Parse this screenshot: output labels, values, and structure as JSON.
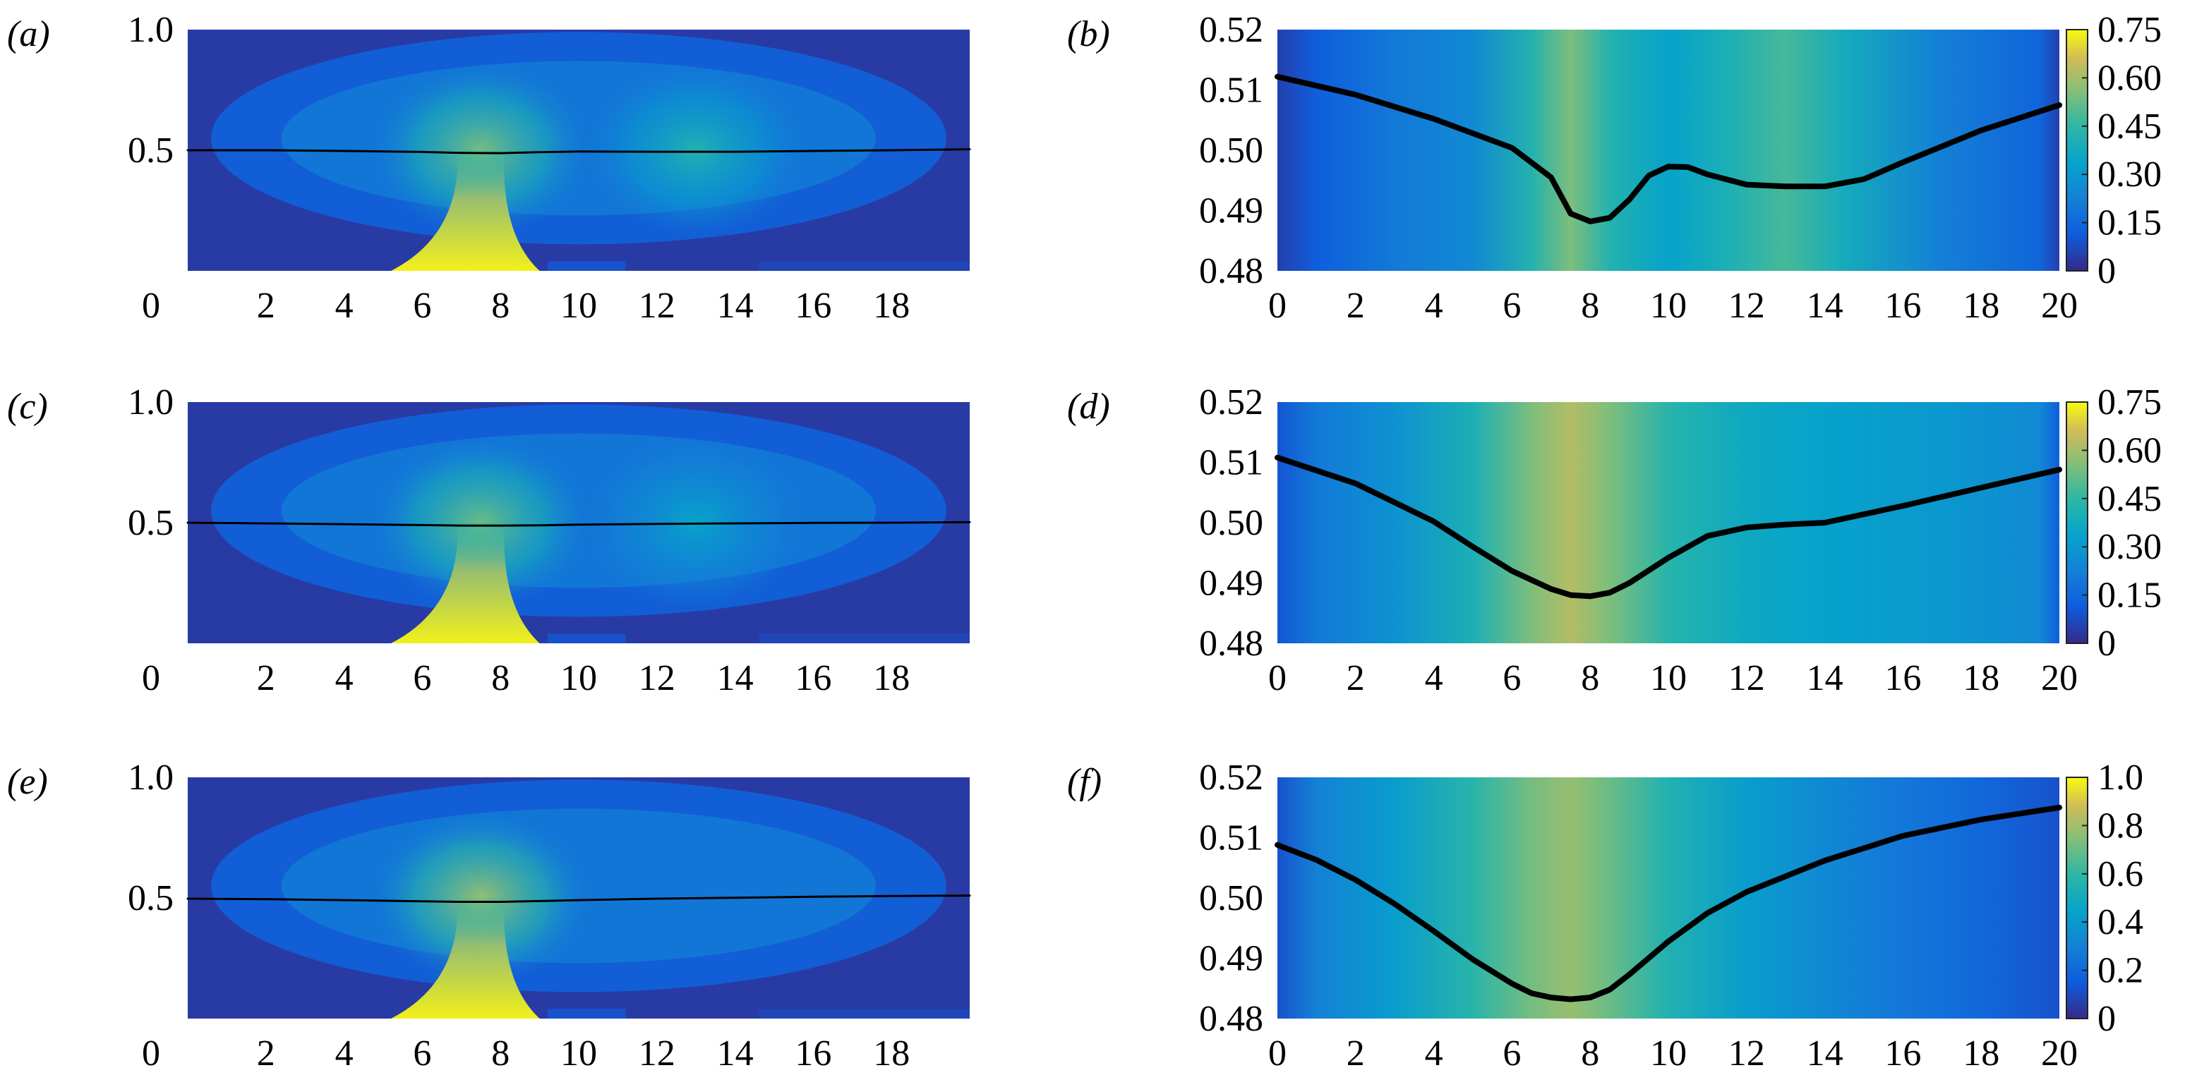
{
  "chart_data": [
    {
      "panel_label": "(a)",
      "type": "heatmap",
      "xlim": [
        0,
        20
      ],
      "ylim": [
        0,
        1.0
      ],
      "xticks": [
        "0",
        "2",
        "4",
        "6",
        "8",
        "10",
        "12",
        "14",
        "16",
        "18"
      ],
      "yticks": [
        "0.5",
        "1.0"
      ],
      "hot_spots": [
        {
          "x": 7.5,
          "y": 0.5,
          "intensity": 0.72
        },
        {
          "x": 13,
          "y": 0.5,
          "intensity": 0.55
        }
      ],
      "series": [
        {
          "x": [
            0,
            2,
            4,
            6,
            7,
            8,
            9,
            10,
            12,
            14,
            16,
            18,
            20
          ],
          "y": [
            0.5,
            0.5,
            0.497,
            0.493,
            0.489,
            0.488,
            0.492,
            0.495,
            0.494,
            0.494,
            0.497,
            0.5,
            0.504
          ]
        }
      ]
    },
    {
      "panel_label": "(b)",
      "type": "heatmap",
      "xlim": [
        0,
        20
      ],
      "ylim": [
        0.48,
        0.52
      ],
      "xticks": [
        "0",
        "2",
        "4",
        "6",
        "8",
        "10",
        "12",
        "14",
        "16",
        "18",
        "20"
      ],
      "yticks": [
        "0.48",
        "0.49",
        "0.50",
        "0.51",
        "0.52"
      ],
      "colorbar": {
        "min": 0,
        "max": 0.75,
        "ticks": [
          "0",
          "0.15",
          "0.30",
          "0.45",
          "0.60",
          "0.75"
        ]
      },
      "column_values": [
        {
          "x": 0,
          "v": 0.05
        },
        {
          "x": 1,
          "v": 0.12
        },
        {
          "x": 3,
          "v": 0.2
        },
        {
          "x": 5,
          "v": 0.25
        },
        {
          "x": 6.5,
          "v": 0.42
        },
        {
          "x": 7.5,
          "v": 0.55
        },
        {
          "x": 8.5,
          "v": 0.42
        },
        {
          "x": 10,
          "v": 0.33
        },
        {
          "x": 11.5,
          "v": 0.4
        },
        {
          "x": 13,
          "v": 0.48
        },
        {
          "x": 14.5,
          "v": 0.38
        },
        {
          "x": 17,
          "v": 0.22
        },
        {
          "x": 19.5,
          "v": 0.14
        },
        {
          "x": 20,
          "v": 0.05
        }
      ],
      "series": [
        {
          "x": [
            0,
            2,
            4,
            6,
            7,
            7.5,
            8,
            8.5,
            9,
            9.5,
            10,
            10.5,
            11,
            12,
            13,
            14,
            15,
            16,
            18,
            20
          ],
          "y": [
            0.5122,
            0.5092,
            0.5052,
            0.5004,
            0.4955,
            0.4895,
            0.4882,
            0.4888,
            0.4918,
            0.4958,
            0.4973,
            0.4972,
            0.496,
            0.4943,
            0.494,
            0.494,
            0.4952,
            0.498,
            0.5033,
            0.5075
          ]
        }
      ]
    },
    {
      "panel_label": "(c)",
      "type": "heatmap",
      "xlim": [
        0,
        20
      ],
      "ylim": [
        0,
        1.0
      ],
      "xticks": [
        "0",
        "2",
        "4",
        "6",
        "8",
        "10",
        "12",
        "14",
        "16",
        "18"
      ],
      "yticks": [
        "0.5",
        "1.0"
      ],
      "hot_spots": [
        {
          "x": 7.5,
          "y": 0.5,
          "intensity": 0.7
        },
        {
          "x": 13,
          "y": 0.5,
          "intensity": 0.45
        }
      ],
      "series": [
        {
          "x": [
            0,
            2,
            4,
            6,
            7,
            8,
            9,
            10,
            12,
            14,
            16,
            18,
            20
          ],
          "y": [
            0.5,
            0.497,
            0.494,
            0.49,
            0.488,
            0.488,
            0.489,
            0.492,
            0.495,
            0.497,
            0.499,
            0.5,
            0.502
          ]
        }
      ]
    },
    {
      "panel_label": "(d)",
      "type": "heatmap",
      "xlim": [
        0,
        20
      ],
      "ylim": [
        0.48,
        0.52
      ],
      "xticks": [
        "0",
        "2",
        "4",
        "6",
        "8",
        "10",
        "12",
        "14",
        "16",
        "18",
        "20"
      ],
      "yticks": [
        "0.48",
        "0.49",
        "0.50",
        "0.51",
        "0.52"
      ],
      "colorbar": {
        "min": 0,
        "max": 0.75,
        "ticks": [
          "0",
          "0.15",
          "0.30",
          "0.45",
          "0.60",
          "0.75"
        ]
      },
      "column_values": [
        {
          "x": 0,
          "v": 0.1
        },
        {
          "x": 1,
          "v": 0.2
        },
        {
          "x": 3,
          "v": 0.28
        },
        {
          "x": 5,
          "v": 0.4
        },
        {
          "x": 6.5,
          "v": 0.55
        },
        {
          "x": 7.5,
          "v": 0.62
        },
        {
          "x": 8.5,
          "v": 0.55
        },
        {
          "x": 10,
          "v": 0.43
        },
        {
          "x": 12,
          "v": 0.36
        },
        {
          "x": 14,
          "v": 0.33
        },
        {
          "x": 17,
          "v": 0.3
        },
        {
          "x": 19.5,
          "v": 0.25
        },
        {
          "x": 20,
          "v": 0.12
        }
      ],
      "series": [
        {
          "x": [
            0,
            2,
            4,
            5,
            6,
            7,
            7.5,
            8,
            8.5,
            9,
            10,
            11,
            12,
            13,
            14,
            16,
            18,
            20
          ],
          "y": [
            0.5108,
            0.5065,
            0.5002,
            0.496,
            0.492,
            0.489,
            0.488,
            0.4878,
            0.4884,
            0.49,
            0.4942,
            0.4978,
            0.4992,
            0.4997,
            0.5,
            0.5028,
            0.5058,
            0.5088
          ]
        }
      ]
    },
    {
      "panel_label": "(e)",
      "type": "heatmap",
      "xlim": [
        0,
        20
      ],
      "ylim": [
        0,
        1.0
      ],
      "xticks": [
        "0",
        "2",
        "4",
        "6",
        "8",
        "10",
        "12",
        "14",
        "16",
        "18"
      ],
      "yticks": [
        "0.5",
        "1.0"
      ],
      "hot_spots": [
        {
          "x": 7.5,
          "y": 0.5,
          "intensity": 0.78
        }
      ],
      "series": [
        {
          "x": [
            0,
            2,
            4,
            6,
            7,
            8,
            9,
            10,
            12,
            14,
            16,
            18,
            20
          ],
          "y": [
            0.497,
            0.495,
            0.491,
            0.486,
            0.484,
            0.484,
            0.487,
            0.491,
            0.497,
            0.501,
            0.505,
            0.508,
            0.51
          ]
        }
      ]
    },
    {
      "panel_label": "(f)",
      "type": "heatmap",
      "xlim": [
        0,
        20
      ],
      "ylim": [
        0.48,
        0.52
      ],
      "xticks": [
        "0",
        "2",
        "4",
        "6",
        "8",
        "10",
        "12",
        "14",
        "16",
        "18",
        "20"
      ],
      "yticks": [
        "0.48",
        "0.49",
        "0.50",
        "0.51",
        "0.52"
      ],
      "colorbar": {
        "min": 0,
        "max": 1.0,
        "ticks": [
          "0",
          "0.2",
          "0.4",
          "0.6",
          "0.8",
          "1.0"
        ]
      },
      "column_values": [
        {
          "x": 0,
          "v": 0.12
        },
        {
          "x": 1,
          "v": 0.3
        },
        {
          "x": 3,
          "v": 0.42
        },
        {
          "x": 5,
          "v": 0.58
        },
        {
          "x": 6.5,
          "v": 0.72
        },
        {
          "x": 7.5,
          "v": 0.78
        },
        {
          "x": 8.5,
          "v": 0.7
        },
        {
          "x": 10,
          "v": 0.55
        },
        {
          "x": 12,
          "v": 0.42
        },
        {
          "x": 14,
          "v": 0.33
        },
        {
          "x": 16,
          "v": 0.26
        },
        {
          "x": 18,
          "v": 0.2
        },
        {
          "x": 20,
          "v": 0.12
        }
      ],
      "series": [
        {
          "x": [
            0,
            1,
            2,
            3,
            4,
            5,
            6,
            6.5,
            7,
            7.5,
            8,
            8.5,
            9,
            10,
            11,
            12,
            14,
            16,
            18,
            20
          ],
          "y": [
            0.5088,
            0.5063,
            0.503,
            0.499,
            0.4945,
            0.4898,
            0.4858,
            0.4842,
            0.4835,
            0.4832,
            0.4835,
            0.4848,
            0.4873,
            0.4928,
            0.4975,
            0.501,
            0.5062,
            0.5103,
            0.513,
            0.515
          ]
        }
      ]
    }
  ]
}
